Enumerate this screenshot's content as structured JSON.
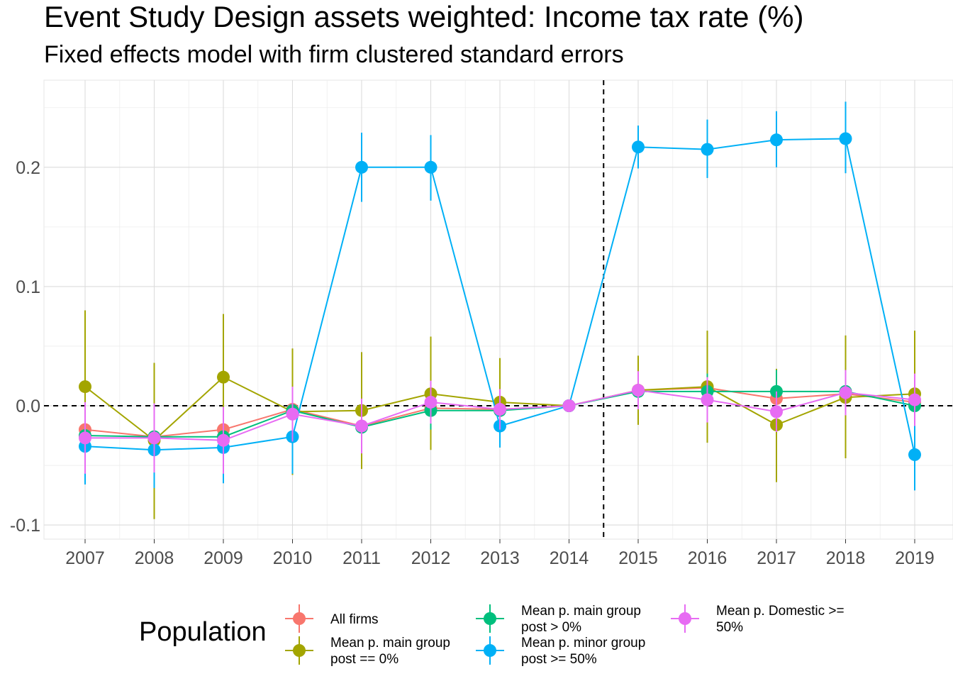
{
  "title": "Event Study Design assets weighted: Income tax rate  (%)",
  "subtitle": "Fixed effects model with firm clustered standard errors",
  "legend": {
    "title": "Population",
    "items": [
      {
        "label_lines": [
          "All firms"
        ],
        "color": "#F8766D"
      },
      {
        "label_lines": [
          "Mean p. main group",
          "post == 0%"
        ],
        "color": "#A3A500"
      },
      {
        "label_lines": [
          "Mean p. main group",
          "post > 0%"
        ],
        "color": "#00BF7D"
      },
      {
        "label_lines": [
          "Mean p. minor group",
          "post >= 50%"
        ],
        "color": "#00B0F6"
      },
      {
        "label_lines": [
          "Mean p. Domestic >=",
          "50%"
        ],
        "color": "#E76BF3"
      }
    ]
  },
  "chart_data": {
    "type": "line",
    "title": "Event Study Design assets weighted: Income tax rate  (%)",
    "subtitle": "Fixed effects model with firm clustered standard errors",
    "xlabel": "",
    "ylabel": "",
    "x": [
      "2007",
      "2008",
      "2009",
      "2010",
      "2011",
      "2012",
      "2013",
      "2014",
      "2015",
      "2016",
      "2017",
      "2018",
      "2019"
    ],
    "ylim": [
      -0.112,
      0.273
    ],
    "yticks": [
      -0.1,
      0.0,
      0.1,
      0.2
    ],
    "ytick_labels": [
      "-0.1",
      "0.0",
      "0.1",
      "0.2"
    ],
    "grid": true,
    "reference_lines": {
      "horizontal": 0.0,
      "vertical_between": [
        "2014",
        "2015"
      ],
      "style": "dashed"
    },
    "legend_position": "bottom",
    "series": [
      {
        "name": "All firms",
        "color": "#F8766D",
        "values": [
          -0.02,
          -0.026,
          -0.02,
          -0.003,
          -0.017,
          -0.002,
          -0.003,
          0.0,
          0.013,
          0.015,
          0.006,
          0.01,
          0.003
        ],
        "lower": [
          -0.045,
          -0.05,
          -0.045,
          -0.02,
          -0.035,
          -0.022,
          -0.018,
          0.0,
          0.0,
          0.0,
          -0.012,
          -0.005,
          -0.012
        ],
        "upper": [
          0.005,
          -0.002,
          0.005,
          0.014,
          0.001,
          0.018,
          0.012,
          0.0,
          0.026,
          0.03,
          0.024,
          0.025,
          0.018
        ]
      },
      {
        "name": "Mean p. main group post == 0%",
        "color": "#A3A500",
        "values": [
          0.016,
          -0.029,
          0.024,
          -0.005,
          -0.004,
          0.01,
          0.003,
          0.0,
          0.013,
          0.016,
          -0.016,
          0.007,
          0.01
        ],
        "lower": [
          -0.048,
          -0.095,
          -0.03,
          -0.058,
          -0.053,
          -0.037,
          -0.035,
          0.0,
          -0.016,
          -0.031,
          -0.064,
          -0.044,
          -0.043
        ],
        "upper": [
          0.08,
          0.036,
          0.077,
          0.048,
          0.045,
          0.058,
          0.04,
          0.0,
          0.042,
          0.063,
          0.031,
          0.059,
          0.063
        ]
      },
      {
        "name": "Mean p. main group post > 0%",
        "color": "#00BF7D",
        "values": [
          -0.025,
          -0.026,
          -0.026,
          -0.004,
          -0.018,
          -0.004,
          -0.004,
          0.0,
          0.012,
          0.012,
          0.012,
          0.012,
          0.0
        ],
        "lower": [
          -0.045,
          -0.045,
          -0.045,
          -0.02,
          -0.035,
          -0.02,
          -0.018,
          0.0,
          0.0,
          -0.003,
          -0.005,
          -0.003,
          -0.015
        ],
        "upper": [
          -0.005,
          -0.007,
          -0.007,
          0.012,
          -0.001,
          0.012,
          0.01,
          0.0,
          0.024,
          0.027,
          0.03,
          0.027,
          0.015
        ]
      },
      {
        "name": "Mean p. minor group post >= 50%",
        "color": "#00B0F6",
        "values": [
          -0.034,
          -0.037,
          -0.035,
          -0.026,
          0.2,
          0.2,
          -0.017,
          0.0,
          0.217,
          0.215,
          0.223,
          0.224,
          -0.041
        ],
        "lower": [
          -0.066,
          -0.069,
          -0.065,
          -0.057,
          0.171,
          0.172,
          -0.035,
          0.0,
          0.199,
          0.191,
          0.2,
          0.195,
          -0.071
        ],
        "upper": [
          -0.003,
          -0.006,
          -0.005,
          0.005,
          0.229,
          0.227,
          0.0,
          0.0,
          0.235,
          0.24,
          0.247,
          0.255,
          -0.011
        ]
      },
      {
        "name": "Mean p. Domestic >= 50%",
        "color": "#E76BF3",
        "values": [
          -0.027,
          -0.027,
          -0.029,
          -0.007,
          -0.017,
          0.003,
          -0.003,
          0.0,
          0.013,
          0.005,
          -0.005,
          0.011,
          0.005
        ],
        "lower": [
          -0.057,
          -0.056,
          -0.057,
          -0.03,
          -0.04,
          -0.015,
          -0.02,
          0.0,
          -0.003,
          -0.014,
          -0.022,
          -0.008,
          -0.017
        ],
        "upper": [
          0.003,
          0.002,
          -0.001,
          0.016,
          0.006,
          0.021,
          0.014,
          0.0,
          0.029,
          0.024,
          0.012,
          0.03,
          0.027
        ]
      }
    ]
  }
}
